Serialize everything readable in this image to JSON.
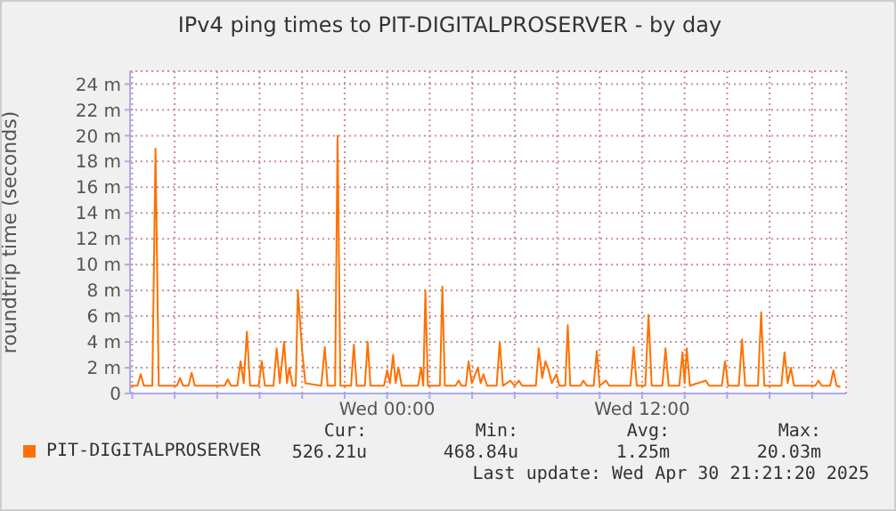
{
  "chart_data": {
    "type": "line",
    "title": "IPv4 ping times to PIT-DIGITALPROSERVER - by day",
    "ylabel": "roundtrip time (seconds)",
    "x": [
      "2025-04-29T11:54",
      "2025-04-29T12:15",
      "2025-04-29T12:24",
      "2025-04-29T12:33",
      "2025-04-29T12:57",
      "2025-04-29T13:06",
      "2025-04-29T13:15",
      "2025-04-29T14:06",
      "2025-04-29T14:15",
      "2025-04-29T14:24",
      "2025-04-29T14:39",
      "2025-04-29T14:48",
      "2025-04-29T14:57",
      "2025-04-29T16:21",
      "2025-04-29T16:30",
      "2025-04-29T16:39",
      "2025-04-29T16:57",
      "2025-04-29T17:06",
      "2025-04-29T17:15",
      "2025-04-29T17:24",
      "2025-04-29T17:33",
      "2025-04-29T17:57",
      "2025-04-29T18:06",
      "2025-04-29T18:15",
      "2025-04-29T18:39",
      "2025-04-29T18:48",
      "2025-04-29T18:57",
      "2025-04-29T19:09",
      "2025-04-29T19:17",
      "2025-04-29T19:24",
      "2025-04-29T19:33",
      "2025-04-29T19:42",
      "2025-04-29T19:48",
      "2025-04-29T20:00",
      "2025-04-29T20:09",
      "2025-04-29T20:54",
      "2025-04-29T21:04",
      "2025-04-29T21:12",
      "2025-04-29T21:33",
      "2025-04-29T21:40",
      "2025-04-29T21:48",
      "2025-04-29T22:18",
      "2025-04-29T22:26",
      "2025-04-29T22:34",
      "2025-04-29T22:57",
      "2025-04-29T23:05",
      "2025-04-29T23:13",
      "2025-04-29T23:51",
      "2025-04-30T00:00",
      "2025-04-30T00:08",
      "2025-04-30T00:17",
      "2025-04-30T00:24",
      "2025-04-30T00:32",
      "2025-04-30T00:41",
      "2025-04-30T01:27",
      "2025-04-30T01:36",
      "2025-04-30T01:42",
      "2025-04-30T01:48",
      "2025-04-30T01:55",
      "2025-04-30T02:29",
      "2025-04-30T02:36",
      "2025-04-30T02:43",
      "2025-04-30T03:13",
      "2025-04-30T03:22",
      "2025-04-30T03:30",
      "2025-04-30T03:42",
      "2025-04-30T03:50",
      "2025-04-30T03:59",
      "2025-04-30T04:16",
      "2025-04-30T04:24",
      "2025-04-30T04:32",
      "2025-04-30T04:42",
      "2025-04-30T05:09",
      "2025-04-30T05:18",
      "2025-04-30T05:27",
      "2025-04-30T05:48",
      "2025-04-30T06:00",
      "2025-04-30T06:12",
      "2025-04-30T06:21",
      "2025-04-30T07:00",
      "2025-04-30T07:08",
      "2025-04-30T07:18",
      "2025-04-30T07:27",
      "2025-04-30T07:36",
      "2025-04-30T07:45",
      "2025-04-30T07:58",
      "2025-04-30T08:06",
      "2025-04-30T08:23",
      "2025-04-30T08:30",
      "2025-04-30T08:37",
      "2025-04-30T09:06",
      "2025-04-30T09:14",
      "2025-04-30T09:24",
      "2025-04-30T09:43",
      "2025-04-30T09:52",
      "2025-04-30T10:00",
      "2025-04-30T10:18",
      "2025-04-30T10:27",
      "2025-04-30T11:27",
      "2025-04-30T11:36",
      "2025-04-30T11:45",
      "2025-04-30T12:09",
      "2025-04-30T12:18",
      "2025-04-30T12:27",
      "2025-04-30T12:57",
      "2025-04-30T13:06",
      "2025-04-30T13:15",
      "2025-04-30T13:45",
      "2025-04-30T13:54",
      "2025-04-30T14:00",
      "2025-04-30T14:06",
      "2025-04-30T14:15",
      "2025-04-30T15:00",
      "2025-04-30T15:09",
      "2025-04-30T15:45",
      "2025-04-30T15:54",
      "2025-04-30T16:03",
      "2025-04-30T16:33",
      "2025-04-30T16:42",
      "2025-04-30T16:51",
      "2025-04-30T17:27",
      "2025-04-30T17:36",
      "2025-04-30T17:45",
      "2025-04-30T18:33",
      "2025-04-30T18:42",
      "2025-04-30T18:51",
      "2025-04-30T19:00",
      "2025-04-30T19:09",
      "2025-04-30T20:09",
      "2025-04-30T20:18",
      "2025-04-30T20:27",
      "2025-04-30T20:51",
      "2025-04-30T21:00",
      "2025-04-30T21:09",
      "2025-04-30T21:20"
    ],
    "series": [
      {
        "name": "PIT-DIGITALPROSERVER",
        "color": "#ff7000",
        "values": [
          0.6,
          0.6,
          1.5,
          0.6,
          0.6,
          19,
          0.6,
          0.6,
          1.2,
          0.6,
          0.6,
          1.6,
          0.6,
          0.6,
          1.1,
          0.6,
          0.6,
          2.5,
          0.8,
          4.8,
          0.6,
          0.6,
          2.5,
          0.6,
          0.6,
          3.5,
          0.8,
          4,
          0.8,
          2,
          0.6,
          0.6,
          8,
          3.3,
          0.8,
          0.6,
          3.6,
          0.6,
          0.6,
          20,
          0.6,
          0.6,
          3.8,
          0.6,
          0.6,
          4,
          0.6,
          0.6,
          1.8,
          0.8,
          3,
          0.8,
          2,
          0.6,
          0.6,
          2,
          0.6,
          8,
          0.6,
          0.6,
          8.3,
          0.6,
          0.6,
          1,
          0.6,
          0.6,
          2.5,
          0.8,
          2,
          0.8,
          1.5,
          0.6,
          0.6,
          4,
          0.6,
          1,
          0.6,
          1,
          0.6,
          0.6,
          3.5,
          1.2,
          2.5,
          1.8,
          0.8,
          1.5,
          0.6,
          0.6,
          5.3,
          0.6,
          0.6,
          1,
          0.6,
          0.6,
          3.3,
          0.6,
          1,
          0.6,
          0.6,
          3.6,
          0.6,
          0.6,
          6.1,
          0.6,
          0.6,
          3.5,
          0.6,
          0.6,
          3.2,
          0.8,
          3.5,
          0.6,
          1,
          0.6,
          0.6,
          2.5,
          0.6,
          0.6,
          4.2,
          0.6,
          0.6,
          6.3,
          0.6,
          0.6,
          3.2,
          0.8,
          2,
          0.6,
          0.6,
          1,
          0.6,
          0.6,
          1.8,
          0.6,
          0.5
        ]
      }
    ],
    "xlim": [
      "2025-04-29T11:54",
      "2025-04-30T21:36"
    ],
    "xticks": [
      {
        "value": "2025-04-29T12:00",
        "label": null
      },
      {
        "value": "2025-04-29T14:00",
        "label": null
      },
      {
        "value": "2025-04-29T16:00",
        "label": null
      },
      {
        "value": "2025-04-29T18:00",
        "label": null
      },
      {
        "value": "2025-04-29T20:00",
        "label": null
      },
      {
        "value": "2025-04-29T22:00",
        "label": null
      },
      {
        "value": "2025-04-30T00:00",
        "label": "Wed 00:00"
      },
      {
        "value": "2025-04-30T02:00",
        "label": null
      },
      {
        "value": "2025-04-30T04:00",
        "label": null
      },
      {
        "value": "2025-04-30T06:00",
        "label": null
      },
      {
        "value": "2025-04-30T08:00",
        "label": null
      },
      {
        "value": "2025-04-30T10:00",
        "label": null
      },
      {
        "value": "2025-04-30T12:00",
        "label": "Wed 12:00"
      },
      {
        "value": "2025-04-30T14:00",
        "label": null
      },
      {
        "value": "2025-04-30T16:00",
        "label": null
      },
      {
        "value": "2025-04-30T18:00",
        "label": null
      },
      {
        "value": "2025-04-30T20:00",
        "label": null
      }
    ],
    "ylim": [
      0,
      25
    ],
    "yticks": [
      0,
      {
        "value": 2,
        "label": "2 m"
      },
      {
        "value": 4,
        "label": "4 m"
      },
      {
        "value": 6,
        "label": "6 m"
      },
      {
        "value": 8,
        "label": "8 m"
      },
      {
        "value": 10,
        "label": "10 m"
      },
      {
        "value": 12,
        "label": "12 m"
      },
      {
        "value": 14,
        "label": "14 m"
      },
      {
        "value": 16,
        "label": "16 m"
      },
      {
        "value": 18,
        "label": "18 m"
      },
      {
        "value": 20,
        "label": "20 m"
      },
      {
        "value": 22,
        "label": "22 m"
      },
      {
        "value": 24,
        "label": "24 m"
      }
    ],
    "grid": true,
    "legend": "bottom left",
    "marker": "none",
    "line_style": "solid",
    "annotations": [
      "Cur:",
      "526.21u",
      "Min:",
      "468.84u",
      "Avg:",
      "1.25m",
      "Max:",
      "20.03m",
      "Last update: Wed Apr 30 21:21:20 2025"
    ]
  }
}
